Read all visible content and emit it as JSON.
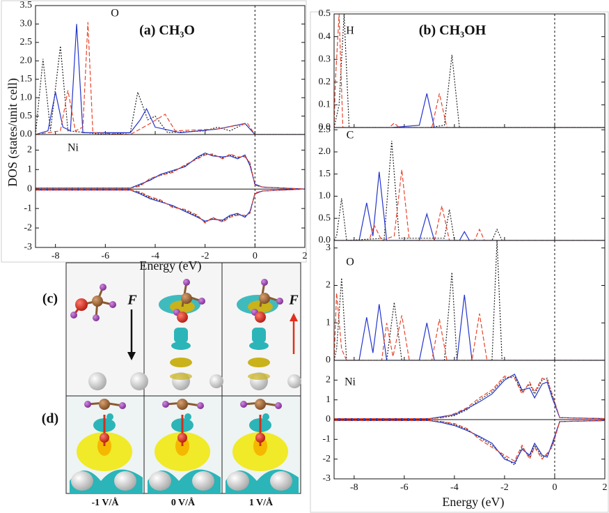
{
  "chart_data": [
    {
      "type": "line",
      "title": "(a) CH₃O",
      "label": "O",
      "ylabel": "DOS (states/unit cell)",
      "xlim": [
        -8.8,
        2
      ],
      "xticks": [
        -8,
        -6,
        -4,
        -2,
        0,
        2
      ],
      "ylim": [
        0,
        3.5
      ],
      "yticks": [
        {
          "value": 0,
          "label": "0.0"
        },
        0.5,
        {
          "value": 1,
          "label": "1.0"
        },
        1.5,
        {
          "value": 2,
          "label": "2.0"
        },
        2.5,
        {
          "value": 3,
          "label": "3.0"
        },
        3.5
      ],
      "vline": 0,
      "series": [
        {
          "color": "#222222",
          "style": "dotted",
          "x": [
            -8.8,
            -8.5,
            -8.2,
            -7.8,
            -7.5,
            -6,
            -5,
            -4.7,
            -4.3,
            -4,
            -3.5,
            -2,
            -1.5,
            -1,
            -0.4,
            0,
            2
          ],
          "values": [
            0,
            2.05,
            0.1,
            2.4,
            0.1,
            0,
            0.05,
            1.15,
            0.4,
            0.5,
            0.05,
            0.1,
            0.2,
            0.1,
            0.3,
            0,
            0
          ]
        },
        {
          "color": "#2233cc",
          "style": "solid",
          "x": [
            -8.8,
            -8.3,
            -8,
            -7.7,
            -7.4,
            -7.15,
            -6.9,
            -5,
            -4.6,
            -4.35,
            -4,
            -3,
            -1.5,
            -0.4,
            0,
            2
          ],
          "values": [
            0,
            0.1,
            1.15,
            0.2,
            0.1,
            3,
            0.05,
            0.05,
            0.4,
            0.7,
            0.2,
            0.05,
            0.15,
            0.3,
            0,
            0
          ]
        },
        {
          "color": "#e8442a",
          "style": "dashed",
          "x": [
            -8.8,
            -7.8,
            -7.5,
            -7.2,
            -6.9,
            -6.7,
            -6.5,
            -5,
            -4.2,
            -3.6,
            -3.2,
            -1.5,
            -0.3,
            0,
            2
          ],
          "values": [
            0,
            0.1,
            1.2,
            0.1,
            0.2,
            3.05,
            0.05,
            0,
            0.3,
            0.55,
            0.1,
            0.15,
            0.3,
            0,
            0
          ]
        }
      ]
    },
    {
      "type": "line",
      "label": "Ni",
      "xlabel": "Energy (eV)",
      "xlim": [
        -8.8,
        2
      ],
      "xticks": [
        -8,
        -6,
        -4,
        -2,
        0,
        2
      ],
      "ylim": [
        -3,
        2.8
      ],
      "yticks": [
        -3,
        -2,
        -1,
        0,
        1,
        2
      ],
      "vline": 0,
      "hline": 0,
      "series": [
        {
          "color": "#222222",
          "style": "dotted",
          "x": [
            -8.8,
            -5,
            -4.6,
            -4.2,
            -3.8,
            -3.3,
            -2.8,
            -2.3,
            -2,
            -1.7,
            -1.3,
            -1,
            -0.7,
            -0.4,
            -0.2,
            0,
            0.3,
            2
          ],
          "values": [
            0.05,
            0.05,
            0.2,
            0.5,
            0.7,
            0.9,
            1.2,
            1.6,
            1.8,
            1.75,
            1.6,
            1.75,
            1.6,
            1.7,
            1.3,
            0.2,
            0.1,
            0
          ]
        },
        {
          "color": "#2233cc",
          "style": "solid",
          "x": [
            -8.8,
            -5,
            -4.6,
            -4.2,
            -3.8,
            -3.3,
            -2.8,
            -2.3,
            -2,
            -1.7,
            -1.3,
            -1,
            -0.7,
            -0.4,
            -0.2,
            0,
            0.3,
            2
          ],
          "values": [
            0.05,
            0.05,
            0.25,
            0.45,
            0.75,
            0.95,
            1.15,
            1.65,
            1.85,
            1.7,
            1.65,
            1.7,
            1.55,
            1.75,
            1.2,
            0.25,
            0.1,
            0
          ]
        },
        {
          "color": "#e8442a",
          "style": "dashed",
          "x": [
            -8.8,
            -5,
            -4.6,
            -4.2,
            -3.8,
            -3.3,
            -2.8,
            -2.3,
            -2,
            -1.7,
            -1.3,
            -1,
            -0.7,
            -0.4,
            -0.2,
            0,
            0.3,
            2
          ],
          "values": [
            0.05,
            0.05,
            0.15,
            0.55,
            0.7,
            0.85,
            1.25,
            1.55,
            1.75,
            1.8,
            1.55,
            1.8,
            1.65,
            1.65,
            1.35,
            0.2,
            0.1,
            0
          ]
        },
        {
          "color": "#222222",
          "style": "dotted",
          "x": [
            -8.8,
            -5,
            -4.6,
            -4.2,
            -3.8,
            -3.3,
            -2.8,
            -2.3,
            -2,
            -1.7,
            -1.3,
            -1,
            -0.7,
            -0.4,
            -0.2,
            0,
            0.3,
            2
          ],
          "values": [
            -0.05,
            -0.05,
            -0.2,
            -0.45,
            -0.6,
            -0.9,
            -1.1,
            -1.4,
            -1.7,
            -1.5,
            -1.65,
            -1.4,
            -1.3,
            -1.4,
            -1.2,
            -0.2,
            -0.1,
            0
          ]
        },
        {
          "color": "#2233cc",
          "style": "solid",
          "x": [
            -8.8,
            -5,
            -4.6,
            -4.2,
            -3.8,
            -3.3,
            -2.8,
            -2.3,
            -2,
            -1.7,
            -1.3,
            -1,
            -0.7,
            -0.4,
            -0.2,
            0,
            0.3,
            2
          ],
          "values": [
            -0.05,
            -0.05,
            -0.25,
            -0.5,
            -0.65,
            -0.85,
            -1.15,
            -1.45,
            -1.65,
            -1.55,
            -1.6,
            -1.35,
            -1.25,
            -1.45,
            -1.15,
            -0.25,
            -0.1,
            0
          ]
        },
        {
          "color": "#e8442a",
          "style": "dashed",
          "x": [
            -8.8,
            -5,
            -4.6,
            -4.2,
            -3.8,
            -3.3,
            -2.8,
            -2.3,
            -2,
            -1.7,
            -1.3,
            -1,
            -0.7,
            -0.4,
            -0.2,
            0,
            0.3,
            2
          ],
          "values": [
            -0.05,
            -0.05,
            -0.15,
            -0.4,
            -0.55,
            -0.95,
            -1.05,
            -1.35,
            -1.75,
            -1.45,
            -1.7,
            -1.45,
            -1.35,
            -1.35,
            -1.25,
            -0.2,
            -0.1,
            0
          ]
        }
      ]
    },
    {
      "type": "line",
      "title": "(b) CH₃OH",
      "label": "H",
      "xlim": [
        -8.8,
        2
      ],
      "xticks": [
        -8,
        -6,
        -4,
        -2,
        0,
        2
      ],
      "ylim": [
        0,
        0.5
      ],
      "yticks": [
        {
          "value": 0,
          "label": "0.0"
        },
        0.1,
        0.2,
        0.3,
        0.4,
        0.5
      ],
      "vline": 0,
      "series": [
        {
          "color": "#222222",
          "style": "dotted",
          "x": [
            -8.8,
            -8.6,
            -8.4,
            -8.2,
            -5,
            -4.4,
            -4.1,
            -3.8,
            2
          ],
          "values": [
            0,
            0.1,
            0.5,
            0,
            0,
            0.01,
            0.32,
            0,
            0
          ]
        },
        {
          "color": "#2233cc",
          "style": "solid",
          "x": [
            -8.8,
            -6.5,
            -5.4,
            -5.1,
            -4.8,
            2
          ],
          "values": [
            0,
            0,
            0.01,
            0.15,
            0,
            0
          ]
        },
        {
          "color": "#e8442a",
          "style": "dashed",
          "x": [
            -8.8,
            -8.75,
            -8.6,
            -8.45,
            -6.6,
            -6.4,
            -6.2,
            -4.9,
            -4.6,
            -4.3,
            2
          ],
          "values": [
            0,
            0.2,
            0.5,
            0,
            0,
            0.02,
            0,
            0,
            0.15,
            0,
            0
          ]
        }
      ]
    },
    {
      "type": "line",
      "label": "C",
      "xlim": [
        -8.8,
        2
      ],
      "xticks": [
        -8,
        -6,
        -4,
        -2,
        0,
        2
      ],
      "ylim": [
        0,
        2.55
      ],
      "yticks": [
        {
          "value": 0,
          "label": "0.0"
        },
        0.5,
        {
          "value": 1,
          "label": "1.0"
        },
        1.5,
        {
          "value": 2,
          "label": "2.0"
        },
        2.5
      ],
      "vline": 0,
      "series": [
        {
          "color": "#222222",
          "style": "dotted",
          "x": [
            -8.8,
            -8.7,
            -8.5,
            -8.3,
            -6.8,
            -6.5,
            -6.2,
            -4.4,
            -4.2,
            -4,
            -2.5,
            -2.3,
            -2.1,
            2
          ],
          "values": [
            0,
            0.1,
            0.95,
            0,
            0.05,
            2.25,
            0.05,
            0.05,
            0.7,
            0,
            0,
            0.25,
            0,
            0
          ]
        },
        {
          "color": "#2233cc",
          "style": "solid",
          "x": [
            -8.8,
            -7.8,
            -7.5,
            -7.25,
            -7,
            -6.7,
            -5.4,
            -5.1,
            -4.8,
            -3.8,
            -3.6,
            -3.4,
            2
          ],
          "values": [
            0,
            0,
            0.85,
            0.1,
            1.55,
            0,
            0,
            0.6,
            0,
            0,
            0.2,
            0,
            0
          ]
        },
        {
          "color": "#e8442a",
          "style": "dashed",
          "x": [
            -8.8,
            -7.4,
            -7.2,
            -6.9,
            -6.4,
            -6.1,
            -5.8,
            -4.8,
            -4.5,
            -4.2,
            -3.2,
            -3,
            -2.8,
            2
          ],
          "values": [
            0,
            0,
            0.35,
            0,
            0.1,
            1.6,
            0,
            0,
            0.78,
            0,
            0,
            0.25,
            0,
            0
          ]
        }
      ]
    },
    {
      "type": "line",
      "label": "O",
      "xlim": [
        -8.8,
        2
      ],
      "xticks": [
        -8,
        -6,
        -4,
        -2,
        0,
        2
      ],
      "ylim": [
        0,
        3.2
      ],
      "yticks": [
        0,
        1,
        2,
        3
      ],
      "vline": 0,
      "series": [
        {
          "color": "#222222",
          "style": "dotted",
          "x": [
            -8.8,
            -8.7,
            -8.5,
            -8.3,
            -6.7,
            -6.4,
            -6.1,
            -4.4,
            -4.1,
            -3.9,
            -2.5,
            -2.3,
            -2.1,
            2
          ],
          "values": [
            0,
            0.3,
            2.2,
            0,
            0,
            1.55,
            0,
            0,
            2.35,
            0,
            0,
            3.2,
            0,
            0
          ]
        },
        {
          "color": "#2233cc",
          "style": "solid",
          "x": [
            -8.8,
            -7.8,
            -7.5,
            -7.25,
            -7,
            -6.7,
            -5.4,
            -5.1,
            -4.8,
            -3.9,
            -3.6,
            -3.3,
            2
          ],
          "values": [
            0,
            0,
            1.15,
            0.2,
            1.5,
            0,
            0,
            1,
            0,
            0,
            1.75,
            0,
            0
          ]
        },
        {
          "color": "#e8442a",
          "style": "dashed",
          "x": [
            -8.8,
            -8.7,
            -8.5,
            -8.3,
            -6.9,
            -6.7,
            -6.45,
            -6.1,
            -5.8,
            -4.9,
            -4.6,
            -4.3,
            -3.3,
            -3,
            -2.7,
            2
          ],
          "values": [
            0,
            1.8,
            0.3,
            0,
            0,
            1,
            0.1,
            1.2,
            0,
            0,
            1.1,
            0,
            0,
            1.25,
            0,
            0
          ]
        }
      ]
    },
    {
      "type": "line",
      "label": "Ni",
      "xlabel": "Energy (eV)",
      "xlim": [
        -8.8,
        2
      ],
      "xticks": [
        -8,
        -6,
        -4,
        -2,
        0,
        2
      ],
      "ylim": [
        -3,
        3
      ],
      "yticks": [
        -3,
        -2,
        -1,
        0,
        1,
        2
      ],
      "vline": 0,
      "hline": 0,
      "series": [
        {
          "color": "#222222",
          "style": "dotted",
          "x": [
            -8.8,
            -5,
            -4.5,
            -4,
            -3.5,
            -3,
            -2.5,
            -2,
            -1.6,
            -1.3,
            -1,
            -0.8,
            -0.5,
            -0.3,
            -0.1,
            0.2,
            2
          ],
          "values": [
            0.05,
            0.05,
            0.1,
            0.2,
            0.5,
            1,
            1.4,
            2.1,
            2.2,
            1.4,
            1.8,
            1.3,
            2,
            2.1,
            1.2,
            0.1,
            0.05
          ]
        },
        {
          "color": "#2233cc",
          "style": "solid",
          "x": [
            -8.8,
            -5,
            -4.5,
            -4,
            -3.5,
            -3,
            -2.5,
            -2,
            -1.6,
            -1.3,
            -1,
            -0.8,
            -0.5,
            -0.3,
            -0.1,
            0.2,
            2
          ],
          "values": [
            0.05,
            0.05,
            0.15,
            0.25,
            0.55,
            0.9,
            1.3,
            2,
            2.3,
            1.5,
            1.6,
            1.1,
            1.8,
            1.9,
            1.1,
            0.1,
            0.05
          ]
        },
        {
          "color": "#e8442a",
          "style": "dashed",
          "x": [
            -8.8,
            -5,
            -4.5,
            -4,
            -3.5,
            -3,
            -2.5,
            -2,
            -1.6,
            -1.3,
            -1,
            -0.8,
            -0.5,
            -0.3,
            -0.1,
            0.2,
            2
          ],
          "values": [
            0.05,
            0.05,
            0.1,
            0.3,
            0.6,
            1.1,
            1.5,
            2.2,
            2.1,
            1.3,
            1.9,
            1.4,
            2.1,
            2,
            1.3,
            0.1,
            0.05
          ]
        },
        {
          "color": "#222222",
          "style": "dotted",
          "x": [
            -8.8,
            -5,
            -4.5,
            -4,
            -3.5,
            -3,
            -2.5,
            -2,
            -1.6,
            -1.3,
            -1,
            -0.8,
            -0.5,
            -0.3,
            -0.1,
            0.2,
            2
          ],
          "values": [
            -0.05,
            -0.05,
            -0.1,
            -0.25,
            -0.5,
            -0.9,
            -1.3,
            -1.9,
            -2.3,
            -1.4,
            -1.9,
            -1.3,
            -1.9,
            -1.8,
            -1.3,
            -0.1,
            -0.05
          ]
        },
        {
          "color": "#2233cc",
          "style": "solid",
          "x": [
            -8.8,
            -5,
            -4.5,
            -4,
            -3.5,
            -3,
            -2.5,
            -2,
            -1.6,
            -1.3,
            -1,
            -0.8,
            -0.5,
            -0.3,
            -0.1,
            0.2,
            2
          ],
          "values": [
            -0.05,
            -0.05,
            -0.15,
            -0.3,
            -0.55,
            -0.85,
            -1.2,
            -2,
            -2.2,
            -1.5,
            -1.8,
            -1.2,
            -1.8,
            -1.9,
            -1.2,
            -0.1,
            -0.05
          ]
        },
        {
          "color": "#e8442a",
          "style": "dashed",
          "x": [
            -8.8,
            -5,
            -4.5,
            -4,
            -3.5,
            -3,
            -2.5,
            -2,
            -1.6,
            -1.3,
            -1,
            -0.8,
            -0.5,
            -0.3,
            -0.1,
            0.2,
            2
          ],
          "values": [
            -0.05,
            -0.05,
            -0.1,
            -0.2,
            -0.45,
            -1,
            -1.4,
            -1.8,
            -2.1,
            -1.3,
            -2,
            -1.4,
            -2,
            -1.7,
            -1.4,
            -0.1,
            -0.05
          ]
        }
      ]
    }
  ],
  "structure_panels": {
    "c_label": "(c)",
    "d_label": "(d)",
    "force_labels": [
      "F",
      "F"
    ],
    "field_labels": [
      "-1 V/Å",
      "0 V/Å",
      "1 V/Å"
    ]
  }
}
